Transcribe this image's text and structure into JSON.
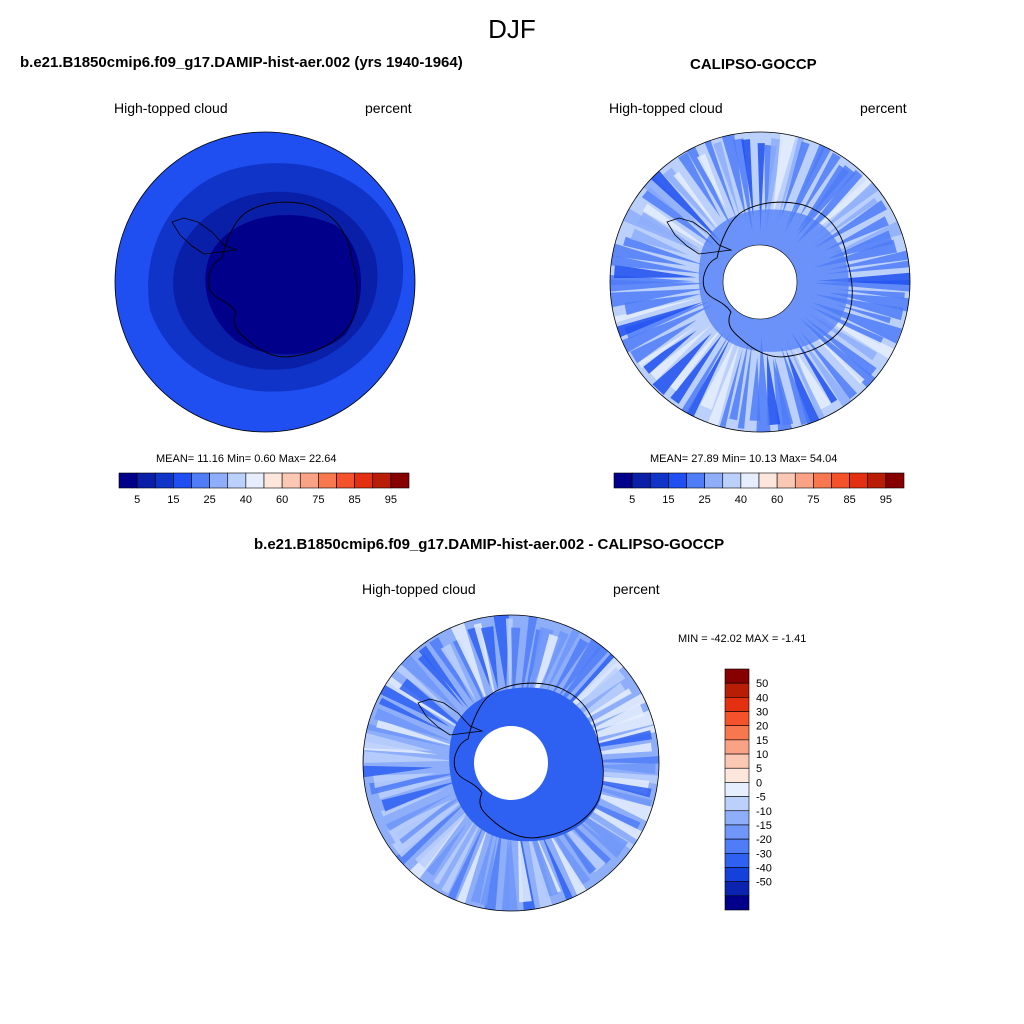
{
  "main_title": "DJF",
  "panels": [
    {
      "title": "b.e21.B1850cmip6.f09_g17.DAMIP-hist-aer.002 (yrs 1940-1964)",
      "variable": "High-topped cloud",
      "units": "percent",
      "stats": "MEAN=  11.16  Min=   0.60  Max=  22.64",
      "colorbar_ticks": [
        "5",
        "15",
        "25",
        "40",
        "60",
        "75",
        "85",
        "95"
      ]
    },
    {
      "title": "CALIPSO-GOCCP",
      "variable": "High-topped cloud",
      "units": "percent",
      "stats": "MEAN=  27.89  Min=  10.13  Max=  54.04",
      "colorbar_ticks": [
        "5",
        "15",
        "25",
        "40",
        "60",
        "75",
        "85",
        "95"
      ]
    },
    {
      "title": "b.e21.B1850cmip6.f09_g17.DAMIP-hist-aer.002 - CALIPSO-GOCCP",
      "variable": "High-topped cloud",
      "units": "percent",
      "stats": "MIN = -42.02 MAX =  -1.41",
      "colorbar_ticks": [
        "50",
        "40",
        "30",
        "20",
        "15",
        "10",
        "5",
        "0",
        "-5",
        "-10",
        "-15",
        "-20",
        "-30",
        "-40",
        "-50"
      ]
    }
  ],
  "colors": {
    "abs_scale": [
      "#00008b",
      "#0a1fa8",
      "#1034c8",
      "#1f4ff0",
      "#4f7df7",
      "#8eaefa",
      "#bcd0fc",
      "#e6eefd",
      "#fde6dc",
      "#fbc8b4",
      "#f9a286",
      "#f7784e",
      "#f4522a",
      "#e33010",
      "#b81e06",
      "#870000"
    ],
    "diff_scale": [
      "#870000",
      "#b81e06",
      "#e33010",
      "#f4522a",
      "#f7784e",
      "#f9a286",
      "#fbc8b4",
      "#fde6dc",
      "#e6eefd",
      "#bcd0fc",
      "#8eaefa",
      "#6f96f8",
      "#4f7df7",
      "#2e60f2",
      "#1440dc",
      "#0a24b0",
      "#00008b"
    ],
    "coastline": "#000000"
  }
}
